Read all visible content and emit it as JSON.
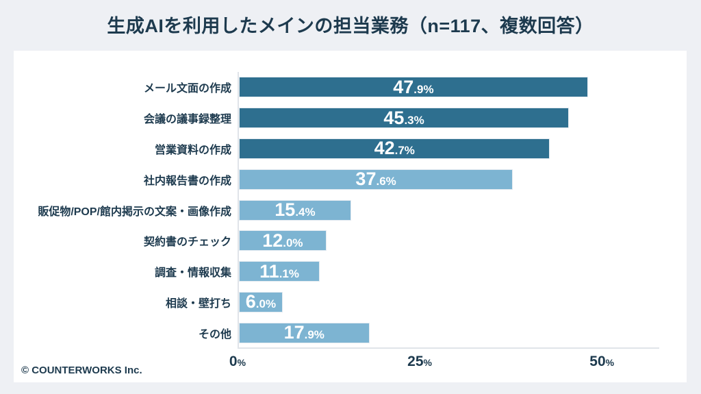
{
  "page": {
    "title": "生成AIを利用したメインの担当業務（n=117、複数回答）",
    "footer": "© COUNTERWORKS Inc."
  },
  "colors": {
    "bar_dark": "#2e6f8f",
    "bar_light": "#7db4d2",
    "text": "#1d3a4e",
    "axis_line": "#e0e4e9",
    "background": "#eef0f4",
    "card": "#ffffff",
    "value_text": "#ffffff"
  },
  "chart_data": {
    "type": "bar",
    "orientation": "horizontal",
    "title": "生成AIを利用したメインの担当業務（n=117、複数回答）",
    "sample_size": "n=117",
    "answer_type": "複数回答",
    "xlabel": "",
    "ylabel": "",
    "xlim": [
      0,
      57.5
    ],
    "grid": false,
    "legend": "none",
    "categories": [
      "メール文面の作成",
      "会議の議事録整理",
      "営業資料の作成",
      "社内報告書の作成",
      "販促物/POP/館内掲示の文案・画像作成",
      "契約書のチェック",
      "調査・情報収集",
      "相談・壁打ち",
      "その他"
    ],
    "values": [
      47.9,
      45.3,
      42.7,
      37.6,
      15.4,
      12.0,
      11.1,
      6.0,
      17.9
    ],
    "rows": [
      {
        "label": "メール文面の作成",
        "value": 47.9,
        "int": "47",
        "dec": ".9%",
        "shade": "dark"
      },
      {
        "label": "会議の議事録整理",
        "value": 45.3,
        "int": "45",
        "dec": ".3%",
        "shade": "dark"
      },
      {
        "label": "営業資料の作成",
        "value": 42.7,
        "int": "42",
        "dec": ".7%",
        "shade": "dark"
      },
      {
        "label": "社内報告書の作成",
        "value": 37.6,
        "int": "37",
        "dec": ".6%",
        "shade": "light"
      },
      {
        "label": "販促物/POP/館内掲示の文案・画像作成",
        "value": 15.4,
        "int": "15",
        "dec": ".4%",
        "shade": "light"
      },
      {
        "label": "契約書のチェック",
        "value": 12.0,
        "int": "12",
        "dec": ".0%",
        "shade": "light"
      },
      {
        "label": "調査・情報収集",
        "value": 11.1,
        "int": "11",
        "dec": ".1%",
        "shade": "light"
      },
      {
        "label": "相談・壁打ち",
        "value": 6.0,
        "int": "6",
        "dec": ".0%",
        "shade": "light"
      },
      {
        "label": "その他",
        "value": 17.9,
        "int": "17",
        "dec": ".9%",
        "shade": "light"
      }
    ],
    "x_ticks": [
      {
        "value": 0,
        "num": "0",
        "suffix": "%"
      },
      {
        "value": 25,
        "num": "25",
        "suffix": "%"
      },
      {
        "value": 50,
        "num": "50",
        "suffix": "%"
      }
    ]
  }
}
